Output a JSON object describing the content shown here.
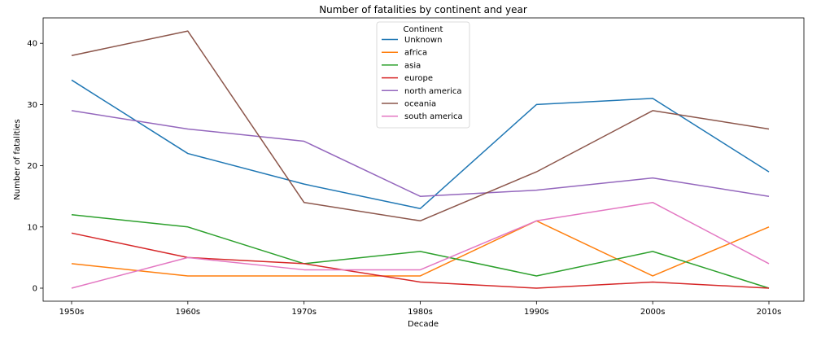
{
  "chart_data": {
    "type": "line",
    "title": "Number of fatalities by continent and year",
    "xlabel": "Decade",
    "ylabel": "Number of fatalities",
    "categories": [
      "1950s",
      "1960s",
      "1970s",
      "1980s",
      "1990s",
      "2000s",
      "2010s"
    ],
    "ylim": [
      -2,
      44
    ],
    "yticks": [
      0,
      10,
      20,
      30,
      40
    ],
    "grid": false,
    "legend": {
      "title": "Continent",
      "placement": "top-center"
    },
    "series": [
      {
        "name": "Unknown",
        "color": "#1f77b4",
        "values": [
          34,
          22,
          17,
          13,
          30,
          31,
          19
        ]
      },
      {
        "name": "africa",
        "color": "#ff7f0e",
        "values": [
          4,
          2,
          2,
          2,
          11,
          2,
          10
        ]
      },
      {
        "name": "asia",
        "color": "#2ca02c",
        "values": [
          12,
          10,
          4,
          6,
          2,
          6,
          0
        ]
      },
      {
        "name": "europe",
        "color": "#d62728",
        "values": [
          9,
          5,
          4,
          1,
          0,
          1,
          0
        ]
      },
      {
        "name": "north america",
        "color": "#9467bd",
        "values": [
          29,
          26,
          24,
          15,
          16,
          18,
          15
        ]
      },
      {
        "name": "oceania",
        "color": "#8c564b",
        "values": [
          38,
          42,
          14,
          11,
          19,
          29,
          26
        ]
      },
      {
        "name": "south america",
        "color": "#e377c2",
        "values": [
          0,
          5,
          3,
          3,
          11,
          14,
          4
        ]
      }
    ]
  }
}
